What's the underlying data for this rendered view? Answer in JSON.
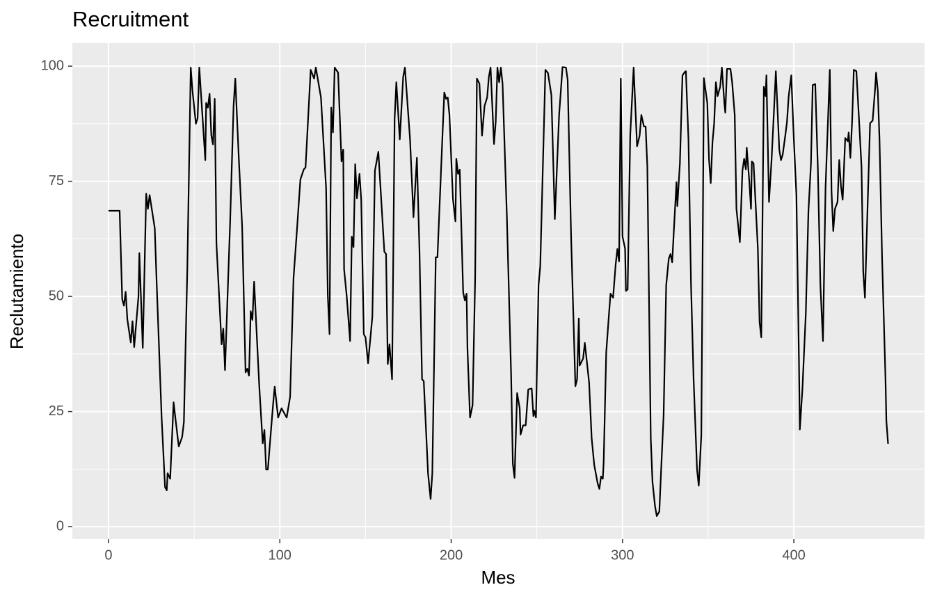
{
  "chart_data": {
    "type": "line",
    "title": "Recruitment",
    "x_label": "Mes",
    "y_label": "Reclutamiento",
    "color": "#000000",
    "grid": true,
    "xlim": [
      -21.1,
      476.3
    ],
    "ylim": [
      -2.7,
      105
    ],
    "xticks": [
      0,
      100,
      200,
      300,
      400
    ],
    "yticks": [
      0,
      25,
      50,
      75,
      100
    ],
    "x": [
      0,
      6.5,
      8,
      9,
      10,
      11,
      13,
      14,
      15,
      17.5,
      18,
      20,
      22,
      23,
      24,
      27,
      28,
      31,
      33,
      34,
      34.5,
      36,
      38,
      39,
      41,
      43,
      44,
      46,
      48,
      49,
      51,
      52,
      53,
      56.5,
      57,
      58,
      59,
      60,
      61,
      62,
      63,
      66,
      67,
      68,
      71,
      73,
      74,
      76,
      78,
      80,
      81,
      82,
      83,
      84,
      85,
      88,
      90,
      91,
      92,
      93,
      96,
      97,
      99,
      101,
      104,
      106,
      108,
      110,
      112,
      114,
      115,
      118,
      120,
      121,
      124,
      127,
      128,
      129,
      130,
      131,
      132,
      134,
      136,
      137,
      137.5,
      139,
      141,
      142,
      143,
      144,
      145,
      146.5,
      147.5,
      149,
      150,
      151.5,
      154,
      155.5,
      157.5,
      159.5,
      161,
      162,
      163,
      164,
      165.5,
      167,
      168,
      170,
      172,
      173,
      176,
      178,
      180,
      181.5,
      183,
      184,
      186.5,
      188,
      189,
      191,
      192,
      195,
      196,
      197,
      198,
      199,
      201,
      202.5,
      203,
      204,
      205,
      207,
      208,
      209,
      209.5,
      211,
      212.5,
      214,
      215,
      216.5,
      218,
      219.5,
      221,
      222,
      223,
      225,
      226,
      227,
      228,
      229,
      230,
      232.5,
      235,
      236,
      237,
      238.5,
      240,
      240.5,
      242,
      243.5,
      245,
      247,
      248,
      248.5,
      249.5,
      251,
      252,
      255,
      256.5,
      258.5,
      260.5,
      263,
      265,
      267,
      268,
      270,
      272.5,
      273.5,
      274.5,
      275,
      277,
      278,
      279,
      280.5,
      282,
      283.5,
      285.5,
      286.5,
      287.5,
      288.5,
      289,
      290.5,
      292,
      293,
      294.5,
      296,
      297,
      298,
      299,
      300,
      301.5,
      302,
      303,
      304.5,
      306.5,
      308.5,
      310,
      311,
      312.5,
      313.5,
      314.5,
      316.5,
      317.5,
      319,
      320,
      321.5,
      322.5,
      324,
      325.5,
      327,
      328,
      329,
      330,
      331.5,
      332,
      333.5,
      335,
      336.5,
      337,
      338.5,
      340,
      341.5,
      343.5,
      344.5,
      346,
      347.5,
      349.5,
      350.5,
      351.5,
      352.5,
      353.5,
      354.5,
      355.5,
      357,
      358,
      359.5,
      360,
      361,
      363,
      364,
      365.5,
      366.5,
      368.5,
      370,
      371,
      372,
      372.5,
      374,
      375,
      375.5,
      376.5,
      379,
      380,
      381,
      382.5,
      383.5,
      384,
      385.5,
      387,
      388,
      389.5,
      391.5,
      392.5,
      393.5,
      395,
      396,
      397,
      398.5,
      400,
      401.5,
      403,
      403.5,
      405,
      407,
      408.5,
      410,
      411,
      412.5,
      414,
      415.5,
      417,
      418.5,
      420,
      421,
      422,
      423,
      424,
      425.5,
      426.5,
      427.5,
      428.5,
      430,
      431.5,
      432,
      433,
      434,
      435,
      436.5,
      438,
      439.5,
      440.5,
      441.5,
      443,
      444.5,
      446,
      447.5,
      448,
      449,
      450,
      451.5,
      453.5,
      454,
      455
    ],
    "values": [
      68.6,
      68.6,
      49.4,
      48,
      51,
      45,
      40,
      44.6,
      39,
      50,
      59.4,
      38.8,
      72.3,
      69,
      72,
      64.8,
      54,
      23.7,
      8.6,
      7.9,
      11.6,
      10.4,
      27,
      23.7,
      17.4,
      19.5,
      22.7,
      56,
      99.7,
      94.7,
      87.5,
      88.7,
      99.7,
      79.6,
      92,
      91,
      94,
      85,
      83,
      92.9,
      61.5,
      39.6,
      43,
      34,
      66.3,
      91.4,
      97.3,
      80.4,
      65.2,
      33.5,
      34.3,
      32.8,
      46.8,
      44.9,
      53.2,
      30.5,
      18.1,
      21,
      12.4,
      12.4,
      26.3,
      30.4,
      23.7,
      25.7,
      23.7,
      28.2,
      54,
      64.5,
      75.4,
      77.6,
      78,
      99.2,
      97.3,
      99.7,
      93.2,
      73.5,
      50.2,
      41.8,
      91,
      85.6,
      99.7,
      98.6,
      79.3,
      81.9,
      55.9,
      50.2,
      40.3,
      63,
      60.7,
      78.7,
      71.3,
      76.6,
      71,
      41.8,
      41.1,
      35.5,
      45.6,
      77.3,
      81.4,
      69,
      59.7,
      59.2,
      35.3,
      39.6,
      32,
      88.7,
      96.5,
      84.1,
      97.7,
      99.7,
      84.1,
      67.2,
      80.1,
      60,
      32,
      31.6,
      11.6,
      6,
      11.6,
      58.5,
      58.5,
      85.6,
      94.3,
      92.9,
      93.2,
      89.4,
      71.3,
      66.3,
      79.9,
      76.6,
      77.5,
      50.9,
      49.1,
      50.6,
      38.8,
      23.7,
      26.4,
      54,
      97.3,
      96.2,
      84.9,
      91.4,
      93.2,
      97.7,
      99.7,
      83.1,
      87.9,
      99.7,
      96.5,
      99.7,
      96.2,
      67.5,
      32.8,
      13.6,
      10.6,
      29,
      25.7,
      20,
      22,
      22,
      29.8,
      30,
      24,
      25.2,
      23.7,
      52.4,
      56.6,
      99.2,
      98.5,
      93.7,
      66.8,
      89.4,
      99.8,
      99.7,
      97,
      63,
      30.5,
      32,
      45.2,
      35,
      36.5,
      39.9,
      36.5,
      31.3,
      19.2,
      13.4,
      9.4,
      8.2,
      10.9,
      10.4,
      13.9,
      37.8,
      45.6,
      50.6,
      49.7,
      56.9,
      60.3,
      57.6,
      97.3,
      63,
      60.4,
      51.2,
      51.5,
      84.9,
      99.7,
      82.6,
      84.9,
      89.4,
      86.9,
      86.9,
      78.1,
      19.2,
      9.7,
      4.4,
      2.3,
      3.3,
      11.9,
      24.2,
      52.4,
      58.2,
      59.2,
      57.4,
      64.5,
      74.8,
      69.6,
      78.9,
      98,
      98.8,
      98.9,
      84.1,
      52.4,
      32,
      12.4,
      8.9,
      19.9,
      97.4,
      92,
      79.6,
      74.6,
      83.4,
      87.6,
      96.5,
      93.5,
      95.5,
      99.7,
      91.7,
      89.9,
      99.4,
      99.4,
      96.5,
      89.4,
      69,
      61.8,
      77.3,
      79.9,
      77.6,
      82.3,
      75,
      69,
      79.3,
      78.9,
      60.4,
      44.4,
      41.1,
      95.5,
      93.5,
      98,
      70.5,
      79.6,
      87.2,
      98.9,
      81.9,
      79.6,
      80.8,
      84.9,
      87.9,
      93.5,
      98,
      84.1,
      72,
      35.8,
      21.1,
      29.8,
      46.4,
      68.3,
      78.9,
      95.9,
      96.1,
      78.1,
      52.4,
      40.3,
      73.6,
      89,
      99.2,
      72.8,
      64.2,
      69,
      70.5,
      79.6,
      74,
      71,
      84.4,
      83.7,
      85.6,
      80.1,
      87.9,
      99.2,
      98.9,
      88.7,
      78.1,
      55.4,
      49.7,
      69,
      87.6,
      88.2,
      95.5,
      98.6,
      94.7,
      84.1,
      58.5,
      32,
      23,
      18
    ]
  }
}
